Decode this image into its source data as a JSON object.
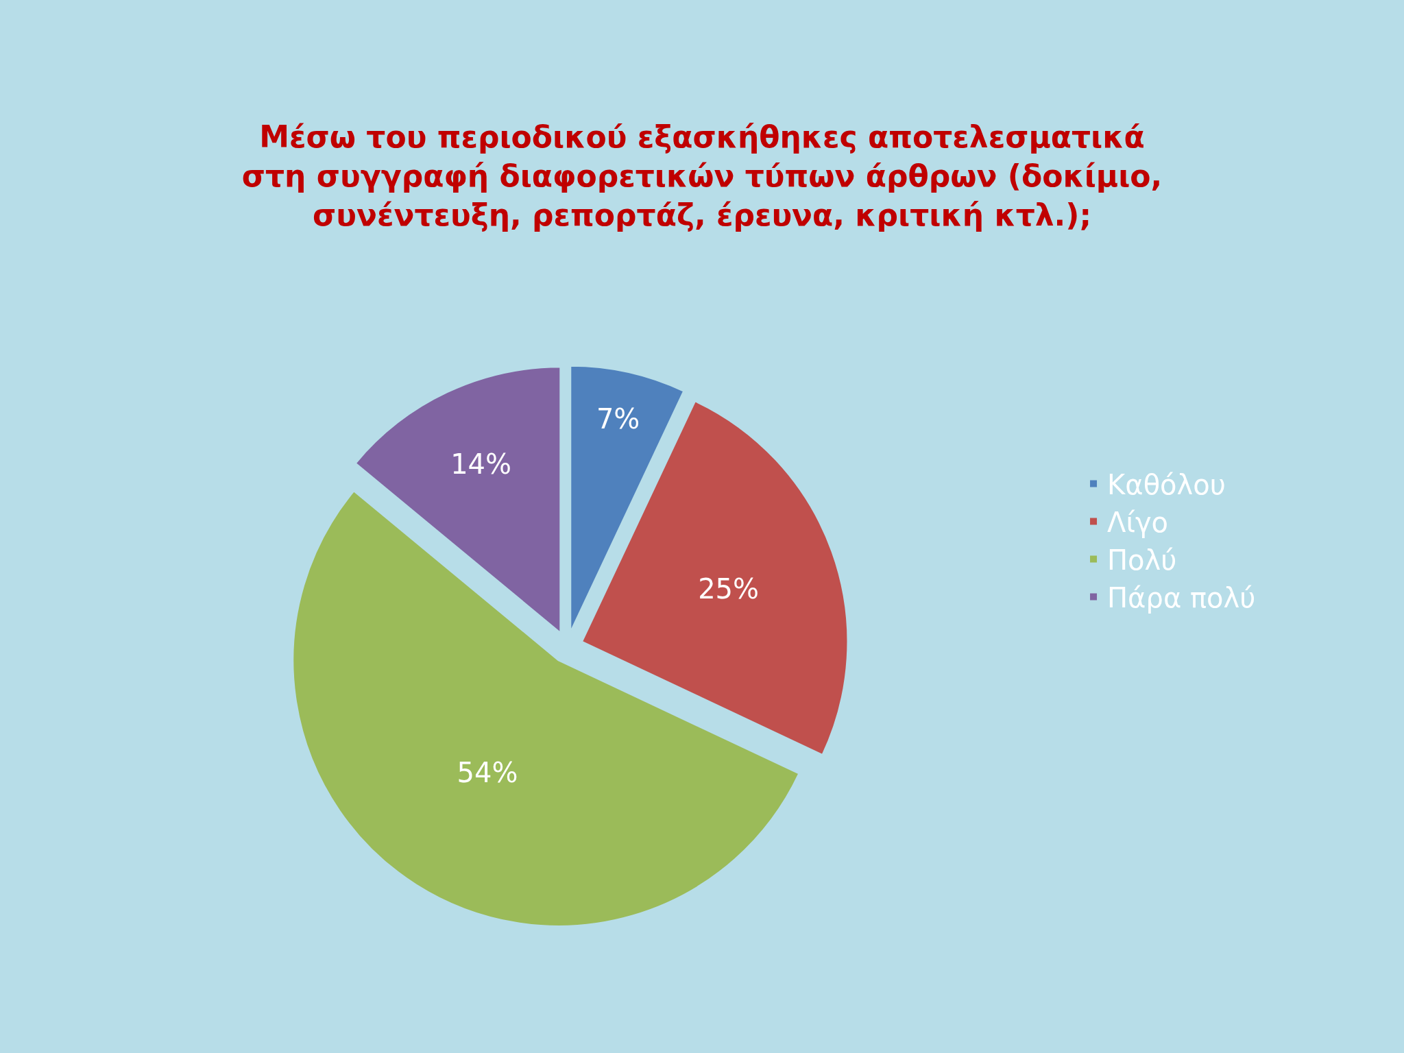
{
  "chart_data": {
    "type": "pie",
    "title": "Μέσω του περιοδικού εξασκήθηκες αποτελεσματικά\nστη συγγραφή διαφορετικών τύπων άρθρων (δοκίμιο,\nσυνέντευξη, ρεπορτάζ, έρευνα, κριτική κτλ.);",
    "categories": [
      "Καθόλου",
      "Λίγο",
      "Πολύ",
      "Πάρα πολύ"
    ],
    "values": [
      7,
      25,
      54,
      14
    ],
    "value_labels": [
      "7%",
      "25%",
      "54%",
      "14%"
    ],
    "colors": [
      "#4f81bd",
      "#c0504d",
      "#9bbb59",
      "#8064a2"
    ],
    "legend": "right"
  }
}
